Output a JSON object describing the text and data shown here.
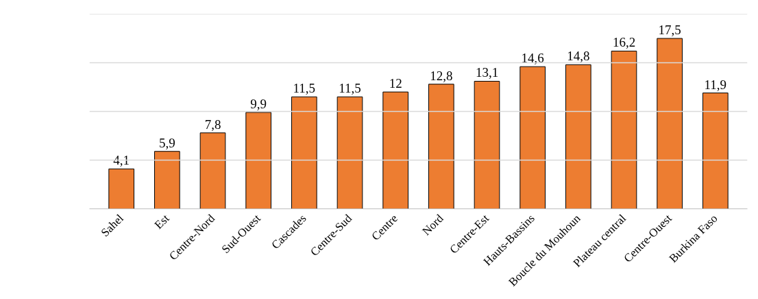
{
  "chart_data": {
    "type": "bar",
    "categories": [
      "Sahel",
      "Est",
      "Centre-Nord",
      "Sud-Ouest",
      "Cascades",
      "Centre-Sud",
      "Centre",
      "Nord",
      "Centre-Est",
      "Hauts-Bassins",
      "Boucle du Mouhoun",
      "Plateau central",
      "Centre-Ouest",
      "Burkina Faso"
    ],
    "values": [
      4.1,
      5.9,
      7.8,
      9.9,
      11.5,
      11.5,
      12,
      12.8,
      13.1,
      14.6,
      14.8,
      16.2,
      17.5,
      11.9
    ],
    "value_labels": [
      "4,1",
      "5,9",
      "7,8",
      "9,9",
      "11,5",
      "11,5",
      "12",
      "12,8",
      "13,1",
      "14,6",
      "14,8",
      "16,2",
      "17,5",
      "11,9"
    ],
    "color": "#ed7d31",
    "ylim": [
      0,
      20
    ],
    "yticks": [
      {
        "value": 0,
        "label": null
      },
      {
        "value": 5,
        "label": null
      },
      {
        "value": 10,
        "label": null
      },
      {
        "value": 15,
        "label": null
      },
      {
        "value": 20,
        "label": null
      }
    ],
    "grid": "y",
    "tick_labels": "x"
  }
}
